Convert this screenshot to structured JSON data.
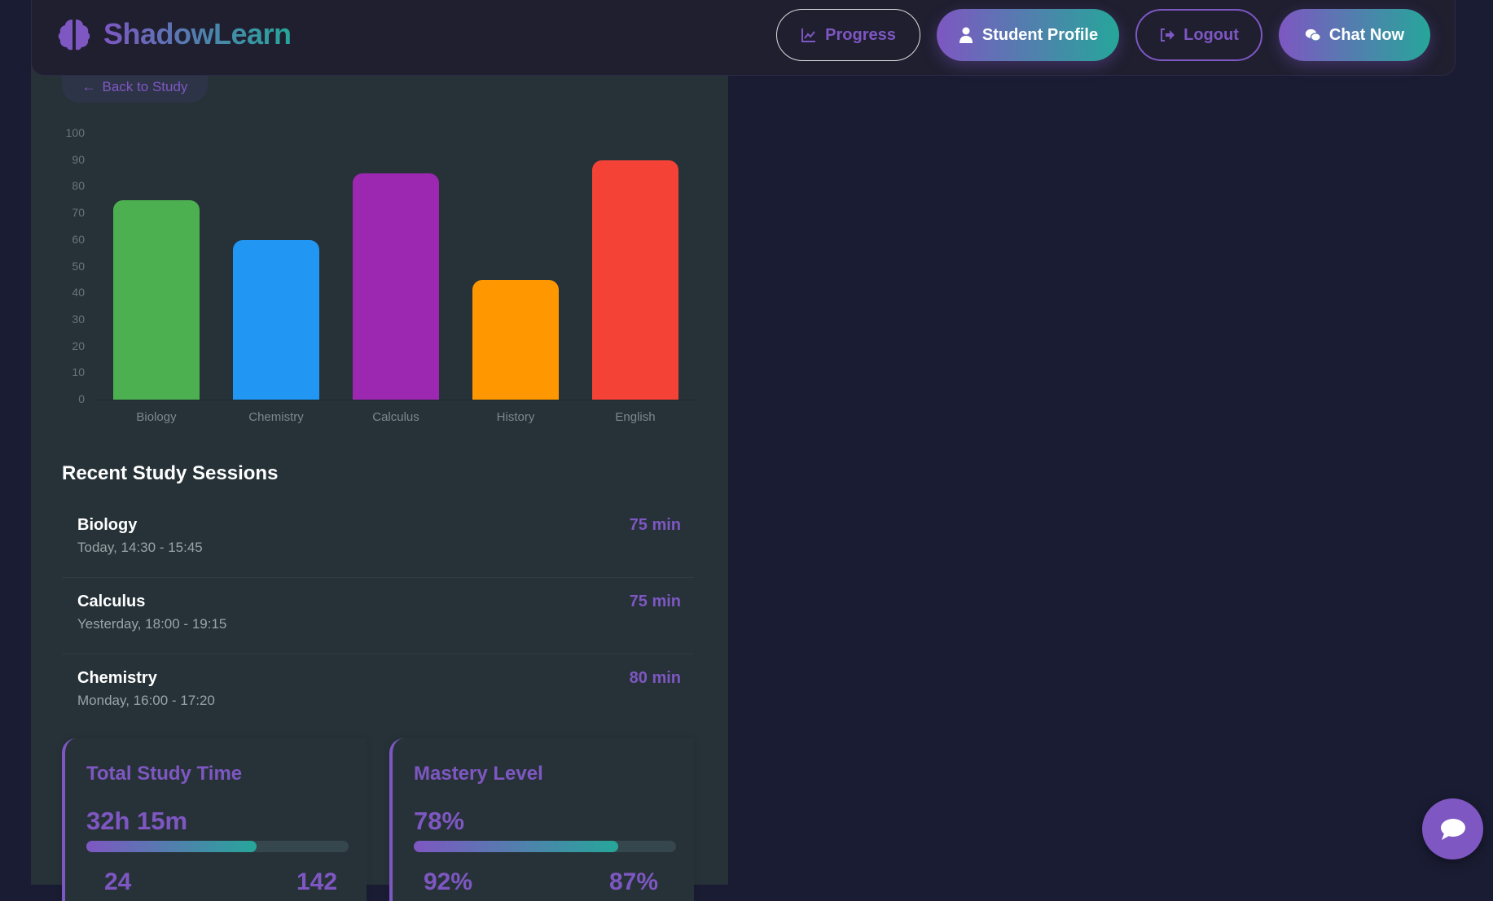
{
  "header": {
    "brand": "ShadowLearn",
    "nav": [
      {
        "label": "Progress",
        "icon": "chart-line-icon"
      },
      {
        "label": "Student Profile",
        "icon": "user-icon"
      },
      {
        "label": "Logout",
        "icon": "logout-icon"
      },
      {
        "label": "Chat Now",
        "icon": "chat-icon"
      }
    ]
  },
  "back_label": "Back to Study",
  "chart_data": {
    "type": "bar",
    "categories": [
      "Biology",
      "Chemistry",
      "Calculus",
      "History",
      "English"
    ],
    "values": [
      75,
      60,
      85,
      45,
      90
    ],
    "colors": [
      "#4caf50",
      "#2196f3",
      "#9c27b0",
      "#ff9800",
      "#f44336"
    ],
    "ylim": [
      0,
      100
    ],
    "yticks": [
      "0",
      "10",
      "20",
      "30",
      "40",
      "50",
      "60",
      "70",
      "80",
      "90",
      "100"
    ],
    "grid": false
  },
  "sessions": {
    "title": "Recent Study Sessions",
    "items": [
      {
        "subject": "Biology",
        "time": "Today, 14:30 - 15:45",
        "duration": "75 min"
      },
      {
        "subject": "Calculus",
        "time": "Yesterday, 18:00 - 19:15",
        "duration": "75 min"
      },
      {
        "subject": "Chemistry",
        "time": "Monday, 16:00 - 17:20",
        "duration": "80 min"
      }
    ]
  },
  "cards": [
    {
      "title": "Total Study Time",
      "value": "32h 15m",
      "progress": 65,
      "stats": [
        "24",
        "142"
      ]
    },
    {
      "title": "Mastery Level",
      "value": "78%",
      "progress": 78,
      "stats": [
        "92%",
        "87%"
      ]
    }
  ],
  "colors": {
    "accent": "#7e57c2",
    "accent2": "#26a69a"
  }
}
